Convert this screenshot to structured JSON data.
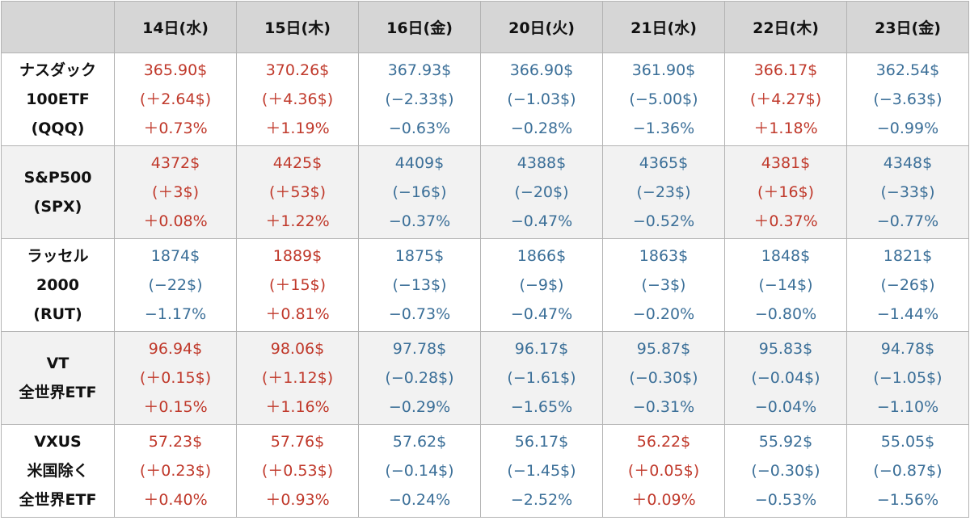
{
  "chart_data": {
    "type": "table",
    "columns": [
      "14日(水)",
      "15日(木)",
      "16日(金)",
      "20日(火)",
      "21日(水)",
      "22日(木)",
      "23日(金)"
    ],
    "colors": {
      "up": "#c0392b",
      "down": "#3b6f98",
      "header_bg": "#d6d6d6",
      "alt_row_bg": "#f2f2f2"
    },
    "rows": [
      {
        "name": [
          "ナスダック",
          "100ETF",
          "(QQQ)"
        ],
        "cells": [
          {
            "dir": "up",
            "price": "365.90$",
            "change": "(＋2.64$)",
            "pct": "＋0.73%"
          },
          {
            "dir": "up",
            "price": "370.26$",
            "change": "(＋4.36$)",
            "pct": "＋1.19%"
          },
          {
            "dir": "down",
            "price": "367.93$",
            "change": "(−2.33$)",
            "pct": "−0.63%"
          },
          {
            "dir": "down",
            "price": "366.90$",
            "change": "(−1.03$)",
            "pct": "−0.28%"
          },
          {
            "dir": "down",
            "price": "361.90$",
            "change": "(−5.00$)",
            "pct": "−1.36%"
          },
          {
            "dir": "up",
            "price": "366.17$",
            "change": "(＋4.27$)",
            "pct": "＋1.18%"
          },
          {
            "dir": "down",
            "price": "362.54$",
            "change": "(−3.63$)",
            "pct": "−0.99%"
          }
        ]
      },
      {
        "name": [
          "S&P500",
          "(SPX)"
        ],
        "cells": [
          {
            "dir": "up",
            "price": "4372$",
            "change": "(＋3$)",
            "pct": "＋0.08%"
          },
          {
            "dir": "up",
            "price": "4425$",
            "change": "(＋53$)",
            "pct": "＋1.22%"
          },
          {
            "dir": "down",
            "price": "4409$",
            "change": "(−16$)",
            "pct": "−0.37%"
          },
          {
            "dir": "down",
            "price": "4388$",
            "change": "(−20$)",
            "pct": "−0.47%"
          },
          {
            "dir": "down",
            "price": "4365$",
            "change": "(−23$)",
            "pct": "−0.52%"
          },
          {
            "dir": "up",
            "price": "4381$",
            "change": "(＋16$)",
            "pct": "＋0.37%"
          },
          {
            "dir": "down",
            "price": "4348$",
            "change": "(−33$)",
            "pct": "−0.77%"
          }
        ]
      },
      {
        "name": [
          "ラッセル",
          "2000",
          "(RUT)"
        ],
        "cells": [
          {
            "dir": "down",
            "price": "1874$",
            "change": "(−22$)",
            "pct": "−1.17%"
          },
          {
            "dir": "up",
            "price": "1889$",
            "change": "(＋15$)",
            "pct": "＋0.81%"
          },
          {
            "dir": "down",
            "price": "1875$",
            "change": "(−13$)",
            "pct": "−0.73%"
          },
          {
            "dir": "down",
            "price": "1866$",
            "change": "(−9$)",
            "pct": "−0.47%"
          },
          {
            "dir": "down",
            "price": "1863$",
            "change": "(−3$)",
            "pct": "−0.20%"
          },
          {
            "dir": "down",
            "price": "1848$",
            "change": "(−14$)",
            "pct": "−0.80%"
          },
          {
            "dir": "down",
            "price": "1821$",
            "change": "(−26$)",
            "pct": "−1.44%"
          }
        ]
      },
      {
        "name": [
          "VT",
          "全世界ETF"
        ],
        "cells": [
          {
            "dir": "up",
            "price": "96.94$",
            "change": "(＋0.15$)",
            "pct": "＋0.15%"
          },
          {
            "dir": "up",
            "price": "98.06$",
            "change": "(＋1.12$)",
            "pct": "＋1.16%"
          },
          {
            "dir": "down",
            "price": "97.78$",
            "change": "(−0.28$)",
            "pct": "−0.29%"
          },
          {
            "dir": "down",
            "price": "96.17$",
            "change": "(−1.61$)",
            "pct": "−1.65%"
          },
          {
            "dir": "down",
            "price": "95.87$",
            "change": "(−0.30$)",
            "pct": "−0.31%"
          },
          {
            "dir": "down",
            "price": "95.83$",
            "change": "(−0.04$)",
            "pct": "−0.04%"
          },
          {
            "dir": "down",
            "price": "94.78$",
            "change": "(−1.05$)",
            "pct": "−1.10%"
          }
        ]
      },
      {
        "name": [
          "VXUS",
          "米国除く",
          "全世界ETF"
        ],
        "cells": [
          {
            "dir": "up",
            "price": "57.23$",
            "change": "(＋0.23$)",
            "pct": "＋0.40%"
          },
          {
            "dir": "up",
            "price": "57.76$",
            "change": "(＋0.53$)",
            "pct": "＋0.93%"
          },
          {
            "dir": "down",
            "price": "57.62$",
            "change": "(−0.14$)",
            "pct": "−0.24%"
          },
          {
            "dir": "down",
            "price": "56.17$",
            "change": "(−1.45$)",
            "pct": "−2.52%"
          },
          {
            "dir": "up",
            "price": "56.22$",
            "change": "(＋0.05$)",
            "pct": "＋0.09%"
          },
          {
            "dir": "down",
            "price": "55.92$",
            "change": "(−0.30$)",
            "pct": "−0.53%"
          },
          {
            "dir": "down",
            "price": "55.05$",
            "change": "(−0.87$)",
            "pct": "−1.56%"
          }
        ]
      }
    ]
  }
}
